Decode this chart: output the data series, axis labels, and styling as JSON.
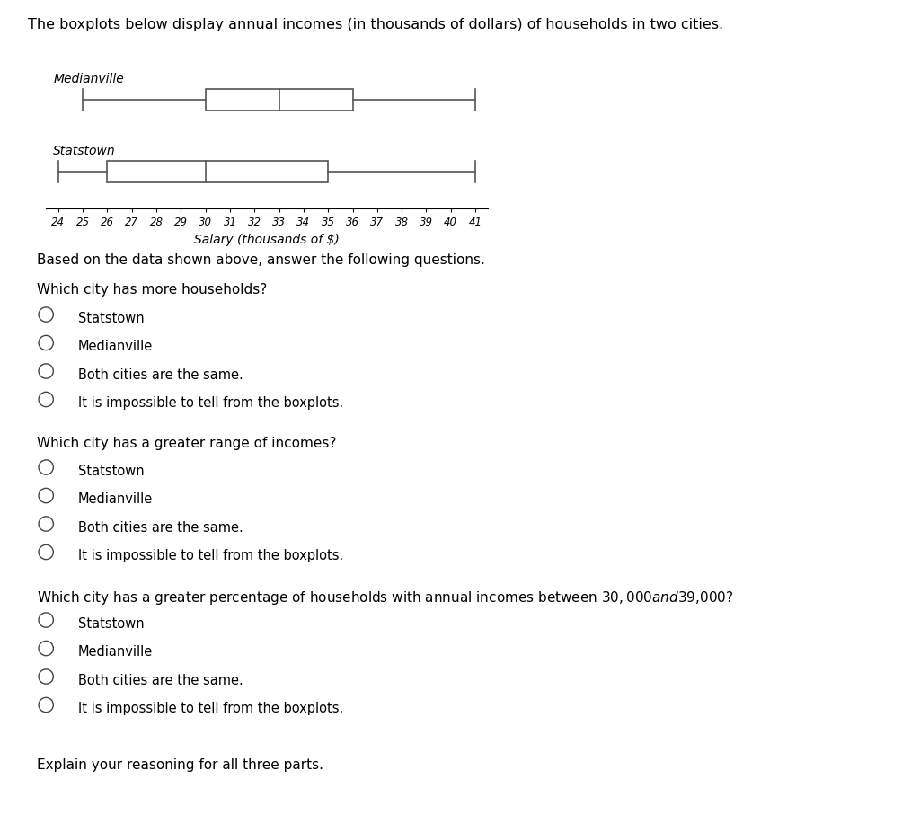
{
  "title": "The boxplots below display annual incomes (in thousands of dollars) of households in two cities.",
  "xlabel": "Salary (thousands of $)",
  "medianville": {
    "label": "Medianville",
    "whisker_low": 25,
    "q1": 30,
    "median": 33,
    "q3": 36,
    "whisker_high": 41
  },
  "statstown": {
    "label": "Statstown",
    "whisker_low": 24,
    "q1": 26,
    "median": 30,
    "q3": 35,
    "whisker_high": 41
  },
  "xmin": 24,
  "xmax": 41,
  "xticks": [
    24,
    25,
    26,
    27,
    28,
    29,
    30,
    31,
    32,
    33,
    34,
    35,
    36,
    37,
    38,
    39,
    40,
    41
  ],
  "q0": "Based on the data shown above, answer the following questions.",
  "q1": "Which city has more households?",
  "q2": "Which city has a greater range of incomes?",
  "q3": "Which city has a greater percentage of households with annual incomes between $30,000 and $39,000?",
  "options": [
    "Statstown",
    "Medianville",
    "Both cities are the same.",
    "It is impossible to tell from the boxplots."
  ],
  "footer": "Explain your reasoning for all three parts.",
  "box_color": "white",
  "line_color": "black",
  "text_color": "black",
  "bg_color": "white"
}
